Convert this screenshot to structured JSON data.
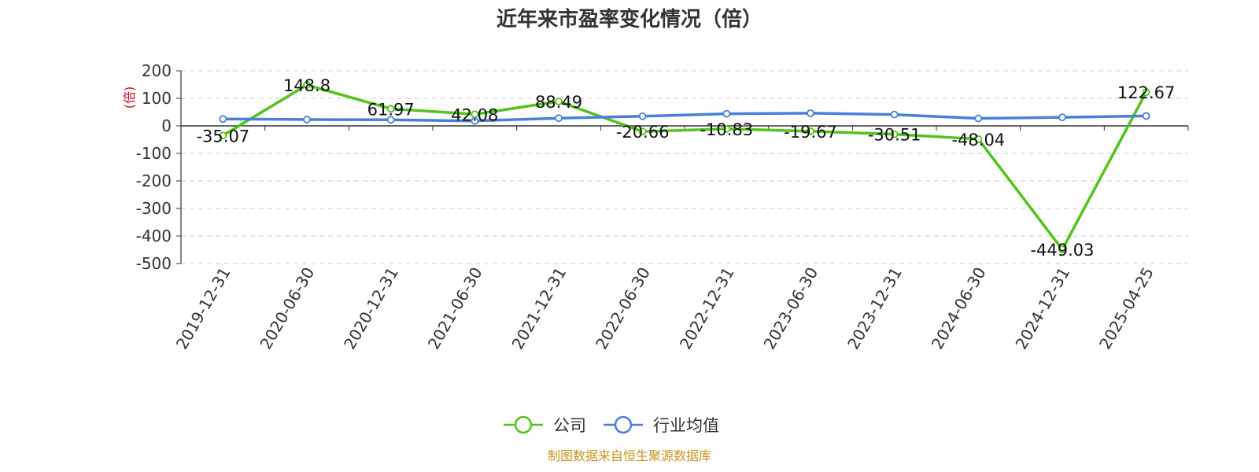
{
  "title": "近年来市盈率变化情况（倍）",
  "source": "制图数据来自恒生聚源数据库",
  "chart_data": {
    "type": "line",
    "ylabel": "(倍)",
    "ylim": [
      -500,
      200
    ],
    "yticks": [
      200,
      100,
      0,
      -100,
      -200,
      -300,
      -400,
      -500
    ],
    "grid": true,
    "legend_position": "bottom-center",
    "categories": [
      "2019-12-31",
      "2020-06-30",
      "2020-12-31",
      "2021-06-30",
      "2021-12-31",
      "2022-06-30",
      "2022-12-31",
      "2023-06-30",
      "2023-12-31",
      "2024-06-30",
      "2024-12-31",
      "2025-04-25"
    ],
    "series": [
      {
        "name": "公司",
        "color": "#52c41a",
        "values": [
          -35.07,
          148.8,
          61.97,
          42.08,
          88.49,
          -20.66,
          -10.83,
          -19.67,
          -30.51,
          -48.04,
          -449.03,
          122.67
        ],
        "labels": [
          "-35.07",
          "148.8",
          "61.97",
          "42.08",
          "88.49",
          "-20.66",
          "-10.83",
          "-19.67",
          "-30.51",
          "-48.04",
          "-449.03",
          "122.67"
        ]
      },
      {
        "name": "行业均值",
        "color": "#4a7fdc",
        "values": [
          25,
          23,
          22,
          18,
          28,
          35,
          44,
          46,
          41,
          27,
          31,
          36
        ]
      }
    ]
  }
}
